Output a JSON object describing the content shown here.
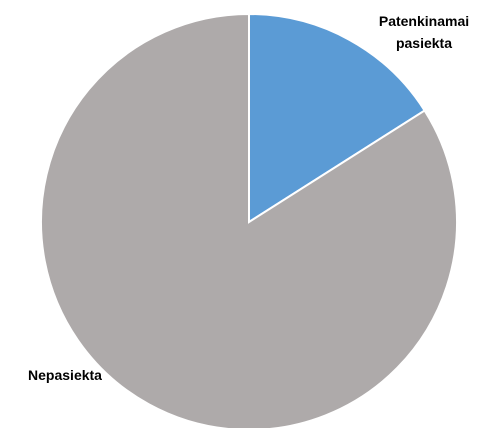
{
  "chart_data": {
    "type": "pie",
    "categories": [
      "Patenkinamai pasiekta",
      "Nepasiekta"
    ],
    "values": [
      16,
      84
    ],
    "colors": [
      "#5b9bd5",
      "#aeaaaa"
    ]
  }
}
